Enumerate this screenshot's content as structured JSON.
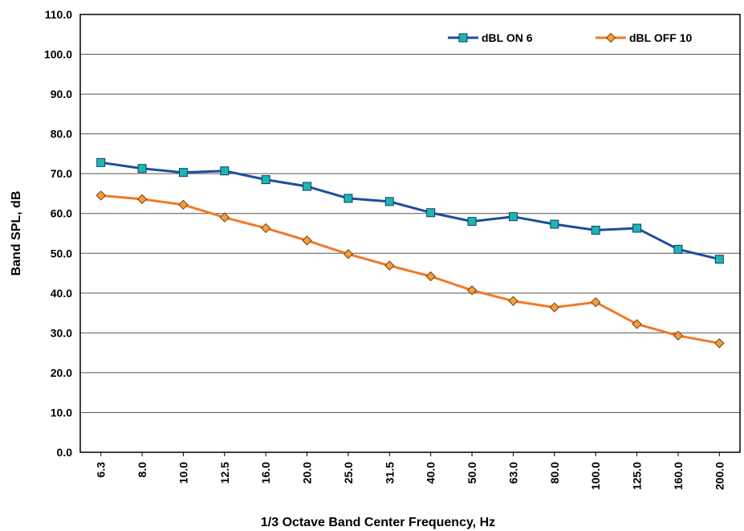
{
  "chart_data": {
    "type": "line",
    "categories": [
      "6.3",
      "8.0",
      "10.0",
      "12.5",
      "16.0",
      "20.0",
      "25.0",
      "31.5",
      "40.0",
      "50.0",
      "63.0",
      "80.0",
      "100.0",
      "125.0",
      "160.0",
      "200.0"
    ],
    "series": [
      {
        "name": "dBL ON 6",
        "color": "#1f4e9c",
        "marker_fill": "#1fb5b0",
        "marker": "square",
        "values": [
          72.8,
          71.3,
          70.3,
          70.7,
          68.5,
          66.8,
          63.8,
          63.0,
          60.2,
          58.0,
          59.2,
          57.3,
          55.8,
          56.3,
          51.0,
          48.5
        ]
      },
      {
        "name": "dBL OFF 10",
        "color": "#f07a28",
        "marker_fill": "#f0a040",
        "marker": "diamond",
        "values": [
          64.5,
          63.6,
          62.2,
          59.0,
          56.3,
          53.2,
          49.8,
          46.9,
          44.2,
          40.7,
          38.0,
          36.4,
          37.7,
          32.2,
          29.3,
          27.4
        ]
      }
    ],
    "y_ticks": [
      "0.0",
      "10.0",
      "20.0",
      "30.0",
      "40.0",
      "50.0",
      "60.0",
      "70.0",
      "80.0",
      "90.0",
      "100.0",
      "110.0"
    ],
    "xlabel": "1/3 Octave Band Center Frequency, Hz",
    "ylabel": "Band SPL, dB",
    "ylim": [
      0,
      110
    ],
    "grid": true,
    "legend_position": "top-right"
  }
}
